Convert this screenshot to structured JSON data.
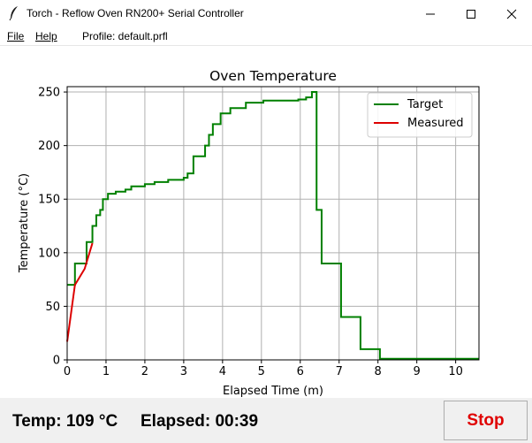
{
  "window": {
    "title": "Torch - Reflow Oven RN200+ Serial Controller",
    "icon": "feather-icon",
    "controls": [
      "minimize-icon",
      "maximize-icon",
      "close-icon"
    ]
  },
  "menu": {
    "file_label": "File",
    "help_label": "Help",
    "profile_label": "Profile: default.prfl"
  },
  "status": {
    "temp_text": "Temp: 109 °C",
    "elapsed_text": "Elapsed: 00:39",
    "stop_label": "Stop"
  },
  "chart_data": {
    "type": "line",
    "title": "Oven Temperature",
    "xlabel": "Elapsed Time (m)",
    "ylabel": "Temperature (°C)",
    "xlim": [
      0,
      10.6
    ],
    "ylim": [
      0,
      255
    ],
    "xticks": [
      "0",
      "1",
      "2",
      "3",
      "4",
      "5",
      "6",
      "7",
      "8",
      "9",
      "10"
    ],
    "yticks": [
      "0",
      "50",
      "100",
      "150",
      "200",
      "250"
    ],
    "grid": true,
    "legend_position": "top-right",
    "series": [
      {
        "name": "Target",
        "color": "#008000",
        "step": true,
        "points": [
          [
            0,
            70
          ],
          [
            0.2,
            90
          ],
          [
            0.5,
            110
          ],
          [
            0.65,
            125
          ],
          [
            0.75,
            135
          ],
          [
            0.85,
            140
          ],
          [
            0.92,
            150
          ],
          [
            1.05,
            155
          ],
          [
            1.25,
            157
          ],
          [
            1.5,
            159
          ],
          [
            1.65,
            162
          ],
          [
            2.0,
            164
          ],
          [
            2.25,
            166
          ],
          [
            2.6,
            168
          ],
          [
            3.0,
            170
          ],
          [
            3.1,
            174
          ],
          [
            3.25,
            190
          ],
          [
            3.55,
            200
          ],
          [
            3.65,
            210
          ],
          [
            3.75,
            220
          ],
          [
            3.95,
            230
          ],
          [
            4.2,
            235
          ],
          [
            4.6,
            240
          ],
          [
            5.05,
            242
          ],
          [
            5.95,
            243
          ],
          [
            6.15,
            245
          ],
          [
            6.3,
            250
          ],
          [
            6.42,
            140
          ],
          [
            6.55,
            90
          ],
          [
            7.05,
            40
          ],
          [
            7.55,
            10
          ],
          [
            8.05,
            1
          ],
          [
            10.6,
            1
          ]
        ]
      },
      {
        "name": "Measured",
        "color": "#dd0000",
        "step": false,
        "points": [
          [
            0,
            17
          ],
          [
            0.2,
            70
          ],
          [
            0.45,
            85
          ],
          [
            0.65,
            109
          ]
        ]
      }
    ]
  }
}
